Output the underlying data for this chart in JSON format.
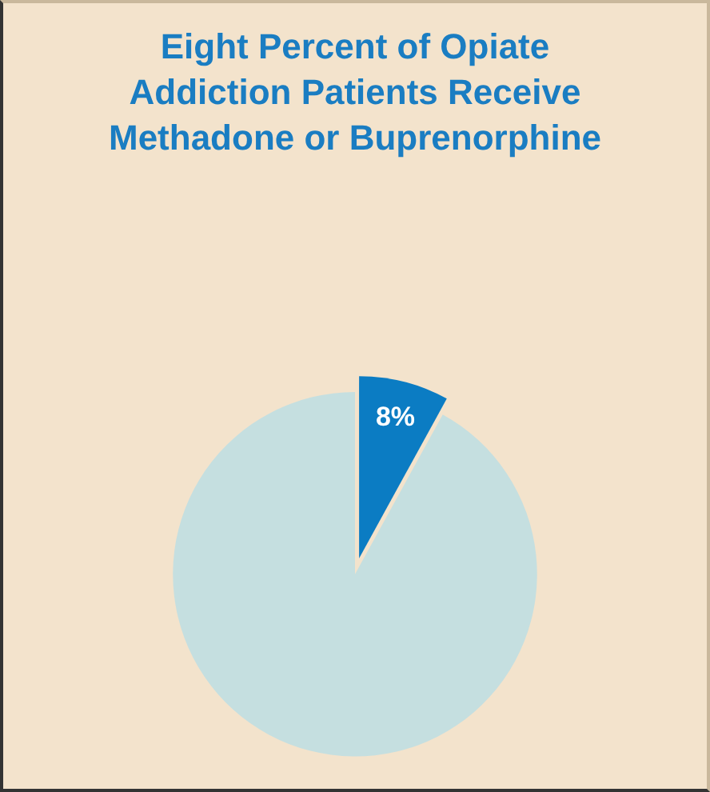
{
  "chart_data": {
    "type": "pie",
    "title": "Eight Percent of Opiate Addiction Patients Receive Methadone or Buprenorphine",
    "categories": [
      null,
      null
    ],
    "values": [
      8,
      92
    ],
    "colors": [
      "#0b7cc3",
      "#c5dfe0"
    ],
    "value_labels": [
      "8%",
      null
    ],
    "legend": false
  }
}
